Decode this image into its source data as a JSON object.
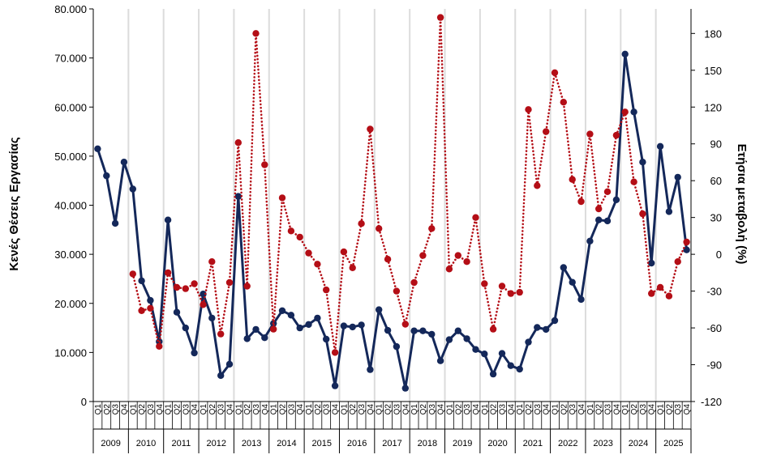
{
  "chart_data": {
    "type": "line",
    "title": "",
    "ylabel": "Κενές Θέσεις Εργασίας",
    "y2label": "Ετήσια μεταβολή (%)",
    "ylim": [
      0,
      80000
    ],
    "y2lim": [
      -120,
      200
    ],
    "y_ticks": [
      "0",
      "10.000",
      "20.000",
      "30.000",
      "40.000",
      "50.000",
      "60.000",
      "70.000",
      "80.000"
    ],
    "y2_ticks": [
      "-120",
      "-90",
      "-60",
      "-30",
      "0",
      "30",
      "60",
      "90",
      "120",
      "150",
      "180"
    ],
    "quarters": [
      "Q1",
      "Q2",
      "Q3",
      "Q4"
    ],
    "years": [
      "2009",
      "2010",
      "2011",
      "2012",
      "2013",
      "2014",
      "2015",
      "2016",
      "2017",
      "2018",
      "2019",
      "2020",
      "2021",
      "2022",
      "2023",
      "2024",
      "2025"
    ],
    "series": [
      {
        "name": "Κενές Θέσεις Εργασίας",
        "axis": "left",
        "color": "#14285a",
        "style": "solid",
        "values": [
          51500,
          46000,
          36300,
          48800,
          43300,
          24600,
          20600,
          12200,
          37000,
          18200,
          15000,
          9900,
          21900,
          17000,
          5300,
          7600,
          41800,
          12800,
          14700,
          13000,
          15900,
          18500,
          17600,
          15000,
          15700,
          17000,
          12700,
          3200,
          15400,
          15200,
          15600,
          6500,
          18700,
          14500,
          11200,
          2700,
          14400,
          14400,
          13700,
          8300,
          12600,
          14400,
          12800,
          10600,
          9700,
          5600,
          9800,
          7300,
          6600,
          12100,
          15100,
          14700,
          16500,
          27300,
          24300,
          20800,
          32700,
          37000,
          36800,
          41100,
          70800,
          59000,
          48800,
          28200,
          52000,
          38700,
          45700,
          30900
        ]
      },
      {
        "name": "Ετήσια μεταβολή (%)",
        "axis": "right",
        "color": "#b40e16",
        "style": "dotted",
        "values": [
          null,
          null,
          null,
          null,
          -16,
          -46,
          -44,
          -75,
          -15,
          -27,
          -28,
          -24,
          -41,
          -6,
          -65,
          -23,
          91,
          -26,
          180,
          73,
          -61,
          46,
          19,
          14,
          1,
          -8,
          -29,
          -80,
          2,
          -11,
          25,
          102,
          21,
          -4,
          -30,
          -57,
          -23,
          -1,
          21,
          193,
          -12,
          -1,
          -6,
          30,
          -24,
          -61,
          -26,
          -32,
          -31,
          118,
          56,
          100,
          148,
          124,
          61,
          43,
          98,
          37,
          51,
          97,
          116,
          59,
          33,
          -32,
          -27,
          -34,
          -6,
          10
        ]
      }
    ]
  }
}
